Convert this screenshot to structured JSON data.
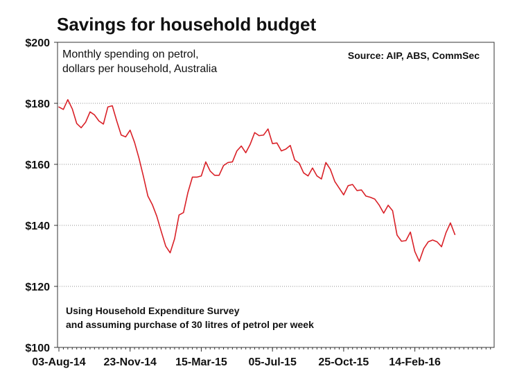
{
  "chart_data": {
    "type": "line",
    "title": "Savings for household budget",
    "subtitle_lines": [
      "Monthly spending on petrol,",
      "dollars per household, Australia"
    ],
    "source": "Source: AIP, ABS, CommSec",
    "note_lines": [
      "Using Household Expenditure Survey",
      "and assuming purchase of 30 litres of petrol per week"
    ],
    "xlabel": "",
    "ylabel": "",
    "ylim": [
      100,
      200
    ],
    "y_ticks": [
      {
        "value": 100,
        "label": "$100"
      },
      {
        "value": 120,
        "label": "$120"
      },
      {
        "value": 140,
        "label": "$140"
      },
      {
        "value": 160,
        "label": "$160"
      },
      {
        "value": 180,
        "label": "$180"
      },
      {
        "value": 200,
        "label": "$200"
      }
    ],
    "x_ticks": [
      {
        "label": "03-Aug-14",
        "index": 0
      },
      {
        "label": "23-Nov-14",
        "index": 16
      },
      {
        "label": "15-Mar-15",
        "index": 32
      },
      {
        "label": "05-Jul-15",
        "index": 48
      },
      {
        "label": "25-Oct-15",
        "index": 64
      },
      {
        "label": "14-Feb-16",
        "index": 80
      }
    ],
    "grid": true,
    "series": [
      {
        "color": "#d92027",
        "x": [
          "03-Aug-14",
          "10-Aug-14",
          "17-Aug-14",
          "24-Aug-14",
          "31-Aug-14",
          "07-Sep-14",
          "14-Sep-14",
          "21-Sep-14",
          "28-Sep-14",
          "05-Oct-14",
          "12-Oct-14",
          "19-Oct-14",
          "26-Oct-14",
          "02-Nov-14",
          "09-Nov-14",
          "16-Nov-14",
          "23-Nov-14",
          "30-Nov-14",
          "07-Dec-14",
          "14-Dec-14",
          "21-Dec-14",
          "28-Dec-14",
          "04-Jan-15",
          "11-Jan-15",
          "18-Jan-15",
          "25-Jan-15",
          "01-Feb-15",
          "08-Feb-15",
          "15-Feb-15",
          "22-Feb-15",
          "01-Mar-15",
          "08-Mar-15",
          "15-Mar-15",
          "22-Mar-15",
          "29-Mar-15",
          "05-Apr-15",
          "12-Apr-15",
          "19-Apr-15",
          "26-Apr-15",
          "03-May-15",
          "10-May-15",
          "17-May-15",
          "24-May-15",
          "31-May-15",
          "07-Jun-15",
          "14-Jun-15",
          "21-Jun-15",
          "28-Jun-15",
          "05-Jul-15",
          "12-Jul-15",
          "19-Jul-15",
          "26-Jul-15",
          "02-Aug-15",
          "09-Aug-15",
          "16-Aug-15",
          "23-Aug-15",
          "30-Aug-15",
          "06-Sep-15",
          "13-Sep-15",
          "20-Sep-15",
          "27-Sep-15",
          "04-Oct-15",
          "11-Oct-15",
          "18-Oct-15",
          "25-Oct-15",
          "01-Nov-15",
          "08-Nov-15",
          "15-Nov-15",
          "22-Nov-15",
          "29-Nov-15",
          "06-Dec-15",
          "13-Dec-15",
          "20-Dec-15",
          "27-Dec-15",
          "03-Jan-16",
          "10-Jan-16",
          "17-Jan-16",
          "24-Jan-16",
          "31-Jan-16",
          "07-Feb-16",
          "14-Feb-16",
          "21-Feb-16",
          "28-Feb-16",
          "06-Mar-16",
          "13-Mar-16",
          "20-Mar-16",
          "27-Mar-16",
          "03-Apr-16",
          "10-Apr-16",
          "17-Apr-16"
        ],
        "values": [
          178.8,
          178.0,
          181.2,
          178.2,
          173.4,
          172.0,
          173.8,
          177.2,
          176.2,
          174.2,
          173.2,
          178.8,
          179.2,
          174.2,
          169.6,
          169.0,
          171.2,
          167.2,
          162.0,
          156.0,
          149.6,
          146.8,
          143.0,
          138.0,
          133.2,
          131.0,
          135.6,
          143.4,
          144.2,
          150.8,
          155.8,
          155.8,
          156.2,
          160.8,
          157.8,
          156.4,
          156.4,
          159.6,
          160.6,
          160.8,
          164.4,
          166.0,
          163.8,
          166.6,
          170.4,
          169.4,
          169.6,
          171.6,
          166.8,
          167.0,
          164.4,
          165.0,
          166.2,
          161.4,
          160.4,
          157.2,
          156.2,
          158.8,
          156.2,
          155.2,
          160.6,
          158.4,
          154.4,
          152.2,
          150.0,
          153.0,
          153.4,
          151.4,
          151.6,
          149.6,
          149.2,
          148.6,
          146.6,
          144.0,
          146.6,
          144.8,
          136.8,
          134.8,
          135.0,
          137.8,
          131.4,
          128.2,
          132.4,
          134.6,
          135.2,
          134.6,
          133.0,
          137.6,
          140.8,
          137.0
        ]
      }
    ]
  }
}
